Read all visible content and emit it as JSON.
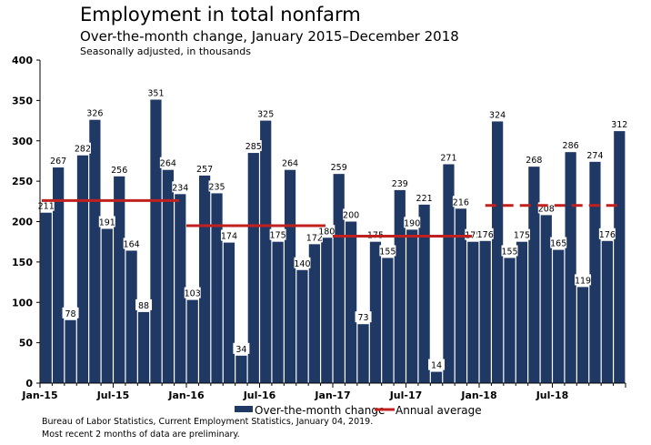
{
  "chart_data": {
    "type": "bar",
    "title": "Employment in total nonfarm",
    "subtitle": "Over-the-month change, January 2015–December 2018",
    "note": "Seasonally adjusted, in thousands",
    "ylim": [
      0,
      400
    ],
    "yticks": [
      0,
      50,
      100,
      150,
      200,
      250,
      300,
      350,
      400
    ],
    "xtick_labels": [
      "Jan-15",
      "Jul-15",
      "Jan-16",
      "Jul-16",
      "Jan-17",
      "Jul-17",
      "Jan-18",
      "Jul-18"
    ],
    "grid": false,
    "legend_position": "bottom",
    "bar_color": "#1f3864",
    "average_color": "#c0201e",
    "series": [
      {
        "name": "Over-the-month change",
        "values": [
          211,
          267,
          78,
          282,
          326,
          191,
          256,
          164,
          88,
          351,
          264,
          234,
          103,
          257,
          235,
          174,
          34,
          285,
          325,
          175,
          264,
          140,
          172,
          180,
          259,
          200,
          73,
          175,
          155,
          239,
          190,
          221,
          14,
          271,
          216,
          175,
          176,
          324,
          155,
          175,
          268,
          208,
          165,
          286,
          119,
          274,
          176,
          312
        ]
      },
      {
        "name": "Annual average",
        "years": [
          "2015",
          "2016",
          "2017",
          "2018"
        ],
        "values": [
          226,
          195,
          182,
          220
        ],
        "dashed": [
          false,
          false,
          false,
          true
        ]
      }
    ]
  },
  "source": "Bureau of Labor Statistics, Current Employment Statistics, January 04, 2019.",
  "footnote": "Most recent 2 months of data are preliminary."
}
